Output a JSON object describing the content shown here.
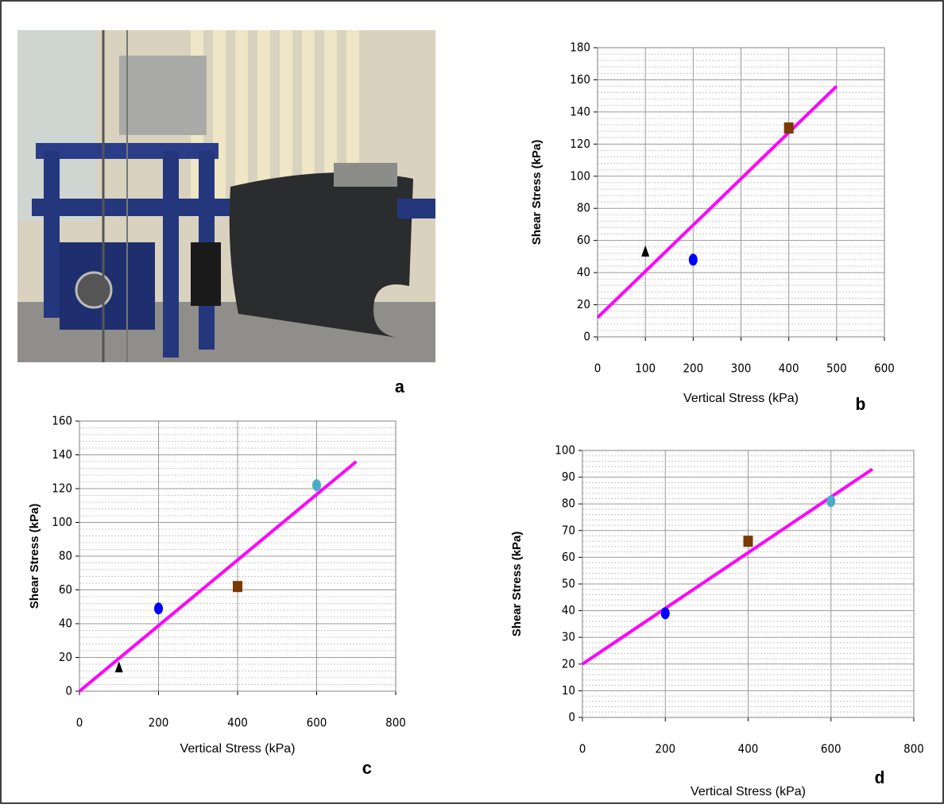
{
  "photo": {
    "label": "a"
  },
  "chart_data": [
    {
      "type": "scatter",
      "panel_label": "b",
      "xlabel": "Vertical Stress   (kPa)",
      "ylabel": "Shear Stress  (kPa)",
      "xlim": [
        0,
        600
      ],
      "xticks": [
        0,
        100,
        200,
        300,
        400,
        500,
        600
      ],
      "ylim": [
        0,
        180
      ],
      "yticks": [
        0,
        20,
        40,
        60,
        80,
        100,
        120,
        140,
        160,
        180
      ],
      "grid": true,
      "series": [
        {
          "marker": "triangle",
          "color": "#000000",
          "x": [
            100
          ],
          "values": [
            53
          ]
        },
        {
          "marker": "circle",
          "color": "#0000ff",
          "x": [
            200
          ],
          "values": [
            48
          ]
        },
        {
          "marker": "square",
          "color": "#7a3a00",
          "x": [
            400
          ],
          "values": [
            130
          ]
        }
      ],
      "fit": {
        "color": "#ff00ff",
        "x": [
          0,
          500
        ],
        "values": [
          12,
          156
        ]
      }
    },
    {
      "type": "scatter",
      "panel_label": "c",
      "xlabel": "Vertical Stress    (kPa)",
      "ylabel": "Shear Stress  (kPa)",
      "xlim": [
        0,
        800
      ],
      "xticks": [
        0,
        200,
        400,
        600,
        800
      ],
      "ylim": [
        0,
        160
      ],
      "yticks": [
        0,
        20,
        40,
        60,
        80,
        100,
        120,
        140,
        160
      ],
      "grid": true,
      "series": [
        {
          "marker": "triangle",
          "color": "#000000",
          "x": [
            100
          ],
          "values": [
            14
          ]
        },
        {
          "marker": "circle",
          "color": "#0000ff",
          "x": [
            200
          ],
          "values": [
            49
          ]
        },
        {
          "marker": "square",
          "color": "#7a3a00",
          "x": [
            400
          ],
          "values": [
            62
          ]
        },
        {
          "marker": "circle",
          "color": "#4bacc6",
          "x": [
            600
          ],
          "values": [
            122
          ]
        }
      ],
      "fit": {
        "color": "#ff00ff",
        "x": [
          0,
          700
        ],
        "values": [
          0,
          136
        ]
      }
    },
    {
      "type": "scatter",
      "panel_label": "d",
      "xlabel": "Vertical Stress   (kPa)",
      "ylabel": "Shear Stress  (kPa)",
      "xlim": [
        0,
        800
      ],
      "xticks": [
        0,
        200,
        400,
        600,
        800
      ],
      "ylim": [
        0,
        100
      ],
      "yticks": [
        0,
        10,
        20,
        30,
        40,
        50,
        60,
        70,
        80,
        90,
        100
      ],
      "grid": true,
      "series": [
        {
          "marker": "circle",
          "color": "#0000ff",
          "x": [
            200
          ],
          "values": [
            39
          ]
        },
        {
          "marker": "square",
          "color": "#7a3a00",
          "x": [
            400
          ],
          "values": [
            66
          ]
        },
        {
          "marker": "circle",
          "color": "#4bacc6",
          "x": [
            600
          ],
          "values": [
            81
          ]
        }
      ],
      "fit": {
        "color": "#ff00ff",
        "x": [
          0,
          700
        ],
        "values": [
          20,
          93
        ]
      }
    }
  ]
}
